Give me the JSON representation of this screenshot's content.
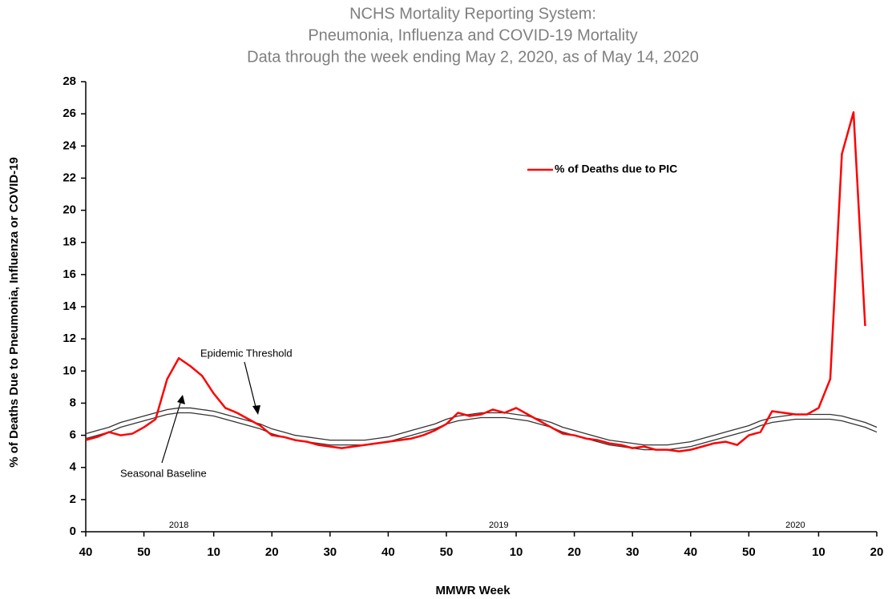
{
  "chart_data": {
    "type": "line",
    "title": [
      "NCHS Mortality Reporting System:",
      "Pneumonia, Influenza and COVID-19 Mortality",
      "Data through the week ending May 2, 2020, as of May 14, 2020"
    ],
    "x_label": "MMWR Week",
    "y_label": "% of Deaths Due to Pneumonia, Influenza or  COVID-19",
    "x": [
      0,
      2,
      4,
      6,
      8,
      10,
      12,
      14,
      16,
      18,
      20,
      22,
      24,
      26,
      28,
      30,
      32,
      34,
      36,
      38,
      40,
      42,
      44,
      46,
      48,
      50,
      52,
      54,
      56,
      58,
      60,
      62,
      64,
      66,
      68,
      70,
      72,
      74,
      76,
      78,
      80,
      82,
      84,
      86,
      88,
      90,
      92,
      94,
      96,
      98,
      100,
      102,
      104,
      106,
      108,
      110,
      112,
      114,
      116,
      118,
      120,
      122,
      124,
      126,
      128,
      130,
      132,
      134,
      136
    ],
    "series": [
      {
        "name": "% of Deaths due to PIC",
        "color": "#ff0000",
        "legend": true,
        "values": [
          5.7,
          5.9,
          6.2,
          6.0,
          6.1,
          6.5,
          7.0,
          9.5,
          10.8,
          10.3,
          9.7,
          8.6,
          7.7,
          7.4,
          7.0,
          6.6,
          6.0,
          5.9,
          5.7,
          5.6,
          5.4,
          5.3,
          5.2,
          5.3,
          5.4,
          5.5,
          5.6,
          5.7,
          5.8,
          6.0,
          6.3,
          6.7,
          7.4,
          7.2,
          7.3,
          7.6,
          7.4,
          7.7,
          7.3,
          6.9,
          6.5,
          6.1,
          6.0,
          5.8,
          5.7,
          5.5,
          5.4,
          5.2,
          5.3,
          5.1,
          5.1,
          5.0,
          5.1,
          5.3,
          5.5,
          5.6,
          5.4,
          6.0,
          6.2,
          7.5,
          7.4,
          7.3,
          7.3,
          7.7,
          9.5,
          23.5,
          26.1,
          12.8,
          null
        ]
      },
      {
        "name": "Epidemic Threshold",
        "color": "#333333",
        "legend": false,
        "values": [
          6.1,
          6.3,
          6.5,
          6.8,
          7.0,
          7.2,
          7.4,
          7.6,
          7.7,
          7.7,
          7.6,
          7.5,
          7.3,
          7.1,
          6.9,
          6.7,
          6.4,
          6.2,
          6.0,
          5.9,
          5.8,
          5.7,
          5.7,
          5.7,
          5.7,
          5.8,
          5.9,
          6.1,
          6.3,
          6.5,
          6.7,
          7.0,
          7.2,
          7.3,
          7.4,
          7.4,
          7.4,
          7.3,
          7.2,
          7.0,
          6.8,
          6.5,
          6.3,
          6.1,
          5.9,
          5.7,
          5.6,
          5.5,
          5.4,
          5.4,
          5.4,
          5.5,
          5.6,
          5.8,
          6.0,
          6.2,
          6.4,
          6.6,
          6.9,
          7.1,
          7.2,
          7.3,
          7.3,
          7.3,
          7.3,
          7.2,
          7.0,
          6.8,
          6.5
        ]
      },
      {
        "name": "Seasonal Baseline",
        "color": "#333333",
        "legend": false,
        "values": [
          5.8,
          6.0,
          6.2,
          6.5,
          6.7,
          6.9,
          7.1,
          7.3,
          7.4,
          7.4,
          7.3,
          7.2,
          7.0,
          6.8,
          6.6,
          6.4,
          6.1,
          5.9,
          5.7,
          5.6,
          5.5,
          5.4,
          5.4,
          5.4,
          5.4,
          5.5,
          5.6,
          5.8,
          6.0,
          6.2,
          6.4,
          6.7,
          6.9,
          7.0,
          7.1,
          7.1,
          7.1,
          7.0,
          6.9,
          6.7,
          6.5,
          6.2,
          6.0,
          5.8,
          5.6,
          5.4,
          5.3,
          5.2,
          5.1,
          5.1,
          5.1,
          5.2,
          5.3,
          5.5,
          5.7,
          5.9,
          6.1,
          6.3,
          6.6,
          6.8,
          6.9,
          7.0,
          7.0,
          7.0,
          7.0,
          6.9,
          6.7,
          6.5,
          6.2
        ]
      }
    ],
    "xlim": [
      0,
      136
    ],
    "xticks": [
      {
        "value": 0,
        "label": "40"
      },
      {
        "value": 10,
        "label": "50"
      },
      {
        "value": 22,
        "label": "10"
      },
      {
        "value": 32,
        "label": "20"
      },
      {
        "value": 42,
        "label": "30"
      },
      {
        "value": 52,
        "label": "40"
      },
      {
        "value": 62,
        "label": "50"
      },
      {
        "value": 74,
        "label": "10"
      },
      {
        "value": 84,
        "label": "20"
      },
      {
        "value": 94,
        "label": "30"
      },
      {
        "value": 104,
        "label": "40"
      },
      {
        "value": 114,
        "label": "50"
      },
      {
        "value": 126,
        "label": "10"
      },
      {
        "value": 136,
        "label": "20"
      }
    ],
    "year_labels": [
      {
        "value": 16,
        "label": "2018"
      },
      {
        "value": 71,
        "label": "2019"
      },
      {
        "value": 122,
        "label": "2020"
      }
    ],
    "ylim": [
      0,
      28
    ],
    "yticks": [
      0,
      2,
      4,
      6,
      8,
      10,
      12,
      14,
      16,
      18,
      20,
      22,
      24,
      26,
      28
    ],
    "grid": false
  }
}
